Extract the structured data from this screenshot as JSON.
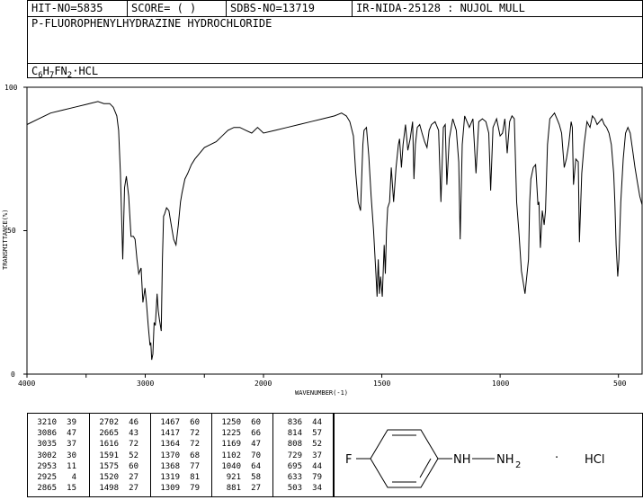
{
  "header": {
    "hit_no": "HIT-NO=5835",
    "score": "SCORE=  (   )",
    "sdbs_no": "SDBS-NO=13719",
    "ir": "IR-NIDA-25128 : NUJOL MULL",
    "compound_name": "P-FLUOROPHENYLHYDRAZINE HYDROCHLORIDE",
    "formula": {
      "c": "C",
      "c_n": "6",
      "h": "H",
      "h_n": "7",
      "f": "F",
      "n": "N",
      "n_n": "2",
      "sep": "·",
      "salt": "HCL"
    }
  },
  "chart_data": {
    "type": "line",
    "xlabel": "WAVENUMBER(-1)",
    "ylabel": "TRANSMITTANCE(%)",
    "xlim": [
      4000,
      400
    ],
    "ylim": [
      0,
      100
    ],
    "x_ticks": [
      "4000",
      "3000",
      "2000",
      "1500",
      "1000",
      "500"
    ],
    "y_ticks": [
      "100",
      "50",
      "0"
    ],
    "series": [
      {
        "x": [
          4000,
          3900,
          3800,
          3700,
          3600,
          3500,
          3450,
          3400,
          3350,
          3300,
          3270,
          3240,
          3225,
          3210,
          3200,
          3190,
          3175,
          3160,
          3140,
          3120,
          3100,
          3086,
          3070,
          3055,
          3035,
          3020,
          3002,
          2990,
          2975,
          2960,
          2953,
          2945,
          2935,
          2925,
          2915,
          2900,
          2890,
          2880,
          2865,
          2855,
          2845,
          2835,
          2820,
          2800,
          2780,
          2760,
          2740,
          2720,
          2702,
          2690,
          2665,
          2640,
          2610,
          2580,
          2540,
          2500,
          2450,
          2400,
          2350,
          2300,
          2250,
          2200,
          2150,
          2100,
          2050,
          2000,
          1950,
          1900,
          1850,
          1800,
          1750,
          1700,
          1670,
          1650,
          1635,
          1620,
          1610,
          1600,
          1590,
          1580,
          1575,
          1565,
          1555,
          1545,
          1535,
          1525,
          1520,
          1515,
          1510,
          1505,
          1498,
          1490,
          1485,
          1480,
          1475,
          1467,
          1460,
          1450,
          1440,
          1430,
          1425,
          1417,
          1410,
          1400,
          1390,
          1380,
          1370,
          1364,
          1358,
          1350,
          1340,
          1330,
          1319,
          1309,
          1300,
          1290,
          1275,
          1260,
          1250,
          1240,
          1232,
          1225,
          1215,
          1200,
          1185,
          1175,
          1169,
          1160,
          1150,
          1140,
          1130,
          1115,
          1102,
          1090,
          1075,
          1060,
          1048,
          1040,
          1030,
          1015,
          1000,
          990,
          980,
          970,
          960,
          950,
          940,
          930,
          921,
          910,
          895,
          880,
          875,
          870,
          860,
          850,
          840,
          836,
          830,
          822,
          814,
          808,
          800,
          790,
          780,
          770,
          760,
          750,
          740,
          729,
          720,
          710,
          700,
          695,
          690,
          680,
          670,
          665,
          655,
          645,
          633,
          620,
          610,
          600,
          590,
          580,
          570,
          560,
          550,
          540,
          530,
          520,
          515,
          510,
          503,
          498,
          490,
          480,
          470,
          460,
          450,
          440,
          430,
          420,
          410,
          400
        ],
        "y": [
          87,
          89,
          91,
          92,
          93,
          94,
          94.5,
          95,
          94.3,
          94.3,
          93,
          90,
          85,
          70,
          55,
          40,
          65,
          69,
          62,
          48,
          48,
          47,
          40,
          35,
          37,
          25,
          30,
          25,
          17,
          10,
          11,
          5,
          7,
          18,
          17,
          28,
          22,
          19,
          15,
          40,
          55,
          56,
          58,
          57,
          52,
          47,
          45,
          52,
          60,
          63,
          68,
          70,
          73,
          75,
          77,
          79,
          80,
          81,
          83,
          85,
          86,
          86,
          85,
          84,
          86,
          84,
          85,
          86,
          87,
          88,
          89,
          90,
          91,
          90,
          88,
          83,
          70,
          60,
          57,
          80,
          85,
          86,
          76,
          62,
          50,
          35,
          27,
          40,
          28,
          34,
          27,
          45,
          35,
          50,
          58,
          60,
          72,
          60,
          72,
          80,
          82,
          72,
          80,
          87,
          78,
          82,
          88,
          68,
          80,
          86,
          87,
          84,
          81,
          79,
          85,
          87,
          88,
          85,
          60,
          86,
          87,
          66,
          82,
          89,
          85,
          74,
          47,
          80,
          90,
          88,
          86,
          89,
          70,
          88,
          89,
          88,
          84,
          64,
          86,
          89,
          83,
          84,
          89,
          77,
          88,
          90,
          89,
          60,
          50,
          36,
          28,
          40,
          60,
          68,
          72,
          73,
          59,
          60,
          44,
          57,
          52,
          57,
          80,
          89,
          90,
          91,
          89,
          87,
          84,
          72,
          75,
          80,
          88,
          86,
          66,
          75,
          74,
          46,
          70,
          80,
          88,
          86,
          90,
          89,
          87,
          88,
          89,
          87,
          86,
          84,
          80,
          70,
          60,
          45,
          34,
          40,
          60,
          75,
          84,
          86,
          84,
          78,
          72,
          67,
          62,
          59
        ]
      }
    ]
  },
  "peaks": [
    [
      [
        "3210",
        "39"
      ],
      [
        "3086",
        "47"
      ],
      [
        "3035",
        "37"
      ],
      [
        "3002",
        "30"
      ],
      [
        "2953",
        "11"
      ],
      [
        "2925",
        "4"
      ],
      [
        "2865",
        "15"
      ]
    ],
    [
      [
        "2702",
        "46"
      ],
      [
        "2665",
        "43"
      ],
      [
        "1616",
        "72"
      ],
      [
        "1591",
        "52"
      ],
      [
        "1575",
        "60"
      ],
      [
        "1520",
        "27"
      ],
      [
        "1498",
        "27"
      ]
    ],
    [
      [
        "1467",
        "60"
      ],
      [
        "1417",
        "72"
      ],
      [
        "1364",
        "72"
      ],
      [
        "1370",
        "68"
      ],
      [
        "1368",
        "77"
      ],
      [
        "1319",
        "81"
      ],
      [
        "1309",
        "79"
      ]
    ],
    [
      [
        "1250",
        "60"
      ],
      [
        "1225",
        "66"
      ],
      [
        "1169",
        "47"
      ],
      [
        "1102",
        "70"
      ],
      [
        "1040",
        "64"
      ],
      [
        "921",
        "58"
      ],
      [
        "881",
        "27"
      ]
    ],
    [
      [
        "836",
        "44"
      ],
      [
        "814",
        "57"
      ],
      [
        "808",
        "52"
      ],
      [
        "729",
        "37"
      ],
      [
        "695",
        "44"
      ],
      [
        "633",
        "79"
      ],
      [
        "503",
        "34"
      ]
    ]
  ],
  "structure": {
    "f_label": "F",
    "nh_label": "NH",
    "nh2_label": "NH",
    "nh2_sub": "2",
    "dot": "·",
    "salt_label": "HCl"
  }
}
